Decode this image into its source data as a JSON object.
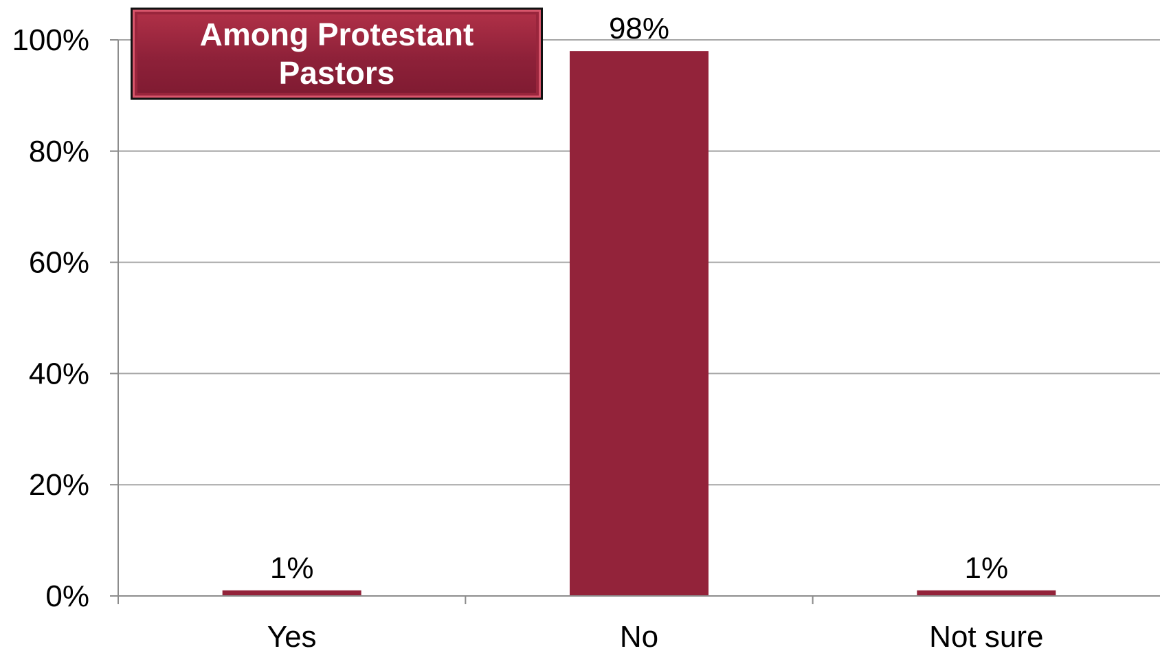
{
  "callout": {
    "text": "Among Protestant Pastors"
  },
  "chart_data": {
    "type": "bar",
    "categories": [
      "Yes",
      "No",
      "Not sure"
    ],
    "values": [
      1,
      98,
      1
    ],
    "data_labels": [
      "1%",
      "98%",
      "1%"
    ],
    "yticks": [
      "0%",
      "20%",
      "40%",
      "60%",
      "80%",
      "100%"
    ],
    "ylim": [
      0,
      100
    ],
    "title": "",
    "xlabel": "",
    "ylabel": "",
    "grid": true,
    "bar_color": "#93233a"
  }
}
